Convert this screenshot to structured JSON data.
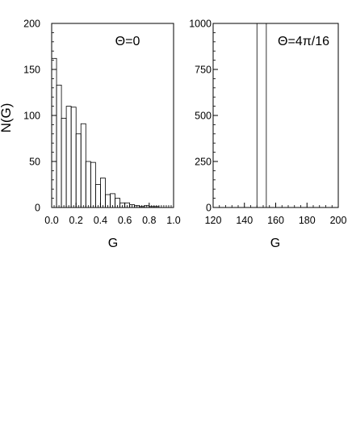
{
  "figure": {
    "ylabel": "N(G)"
  },
  "chart_data": [
    {
      "type": "bar",
      "annotation": "Θ=0",
      "xlabel": "G",
      "ylabel": "N(G)",
      "xlim": [
        0.0,
        1.0
      ],
      "ylim": [
        0,
        200
      ],
      "x_ticks": [
        "0.0",
        "0.2",
        "0.4",
        "0.6",
        "0.8",
        "1.0"
      ],
      "y_ticks": [
        "0",
        "50",
        "100",
        "150",
        "200"
      ],
      "bin_width": 0.04,
      "bin_starts": [
        0.0,
        0.04,
        0.08,
        0.12,
        0.16,
        0.2,
        0.24,
        0.28,
        0.32,
        0.36,
        0.4,
        0.44,
        0.48,
        0.52,
        0.56,
        0.6,
        0.64,
        0.68,
        0.72,
        0.76,
        0.8,
        0.84,
        0.88,
        0.92,
        0.96
      ],
      "values": [
        162,
        133,
        97,
        110,
        109,
        80,
        91,
        50,
        49,
        25,
        32,
        14,
        15,
        10,
        5,
        5,
        3,
        2,
        1,
        2,
        1,
        1,
        0,
        0,
        0
      ],
      "grid": false
    },
    {
      "type": "bar",
      "annotation": "Θ=4π/16",
      "xlabel": "G",
      "xlim": [
        120,
        200
      ],
      "ylim": [
        0,
        1000
      ],
      "x_ticks": [
        "120",
        "140",
        "160",
        "180",
        "200"
      ],
      "y_ticks": [
        "0",
        "250",
        "500",
        "750",
        "1000"
      ],
      "bin_width": 6,
      "bin_starts": [
        148
      ],
      "values": [
        1000
      ],
      "grid": false
    }
  ]
}
